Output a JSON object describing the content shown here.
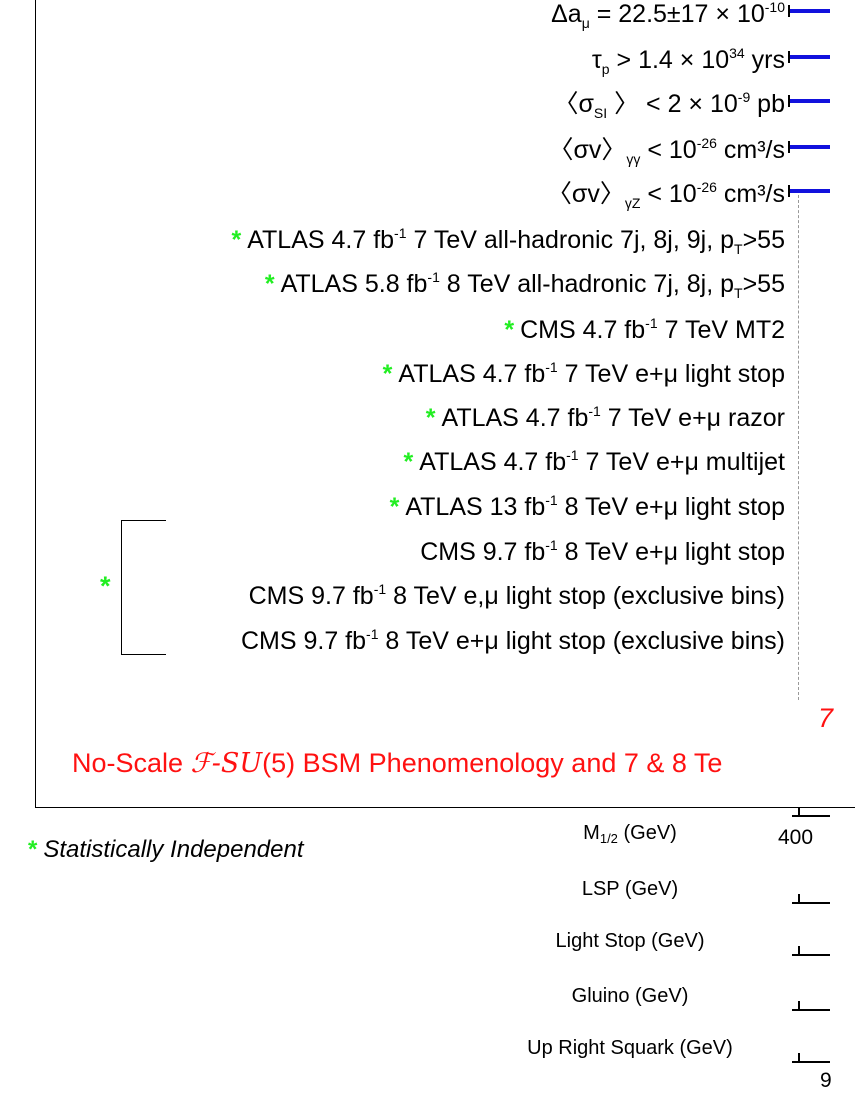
{
  "chart_data": {
    "type": "bar",
    "title": "No-Scale ℱ-SU(5) BSM Phenomenology and 7 & 8 Te",
    "title_parts": {
      "pre": "No-Scale ",
      "f": "ℱ",
      "su": "-SU",
      "post": "(5) BSM Phenomenology and 7 & 8 Te"
    },
    "subtitle": "7",
    "constraint_rows": [
      {
        "text_pre": "Δa",
        "sub": "μ",
        "text_post": " = 22.5±17 × 10",
        "sup": "-10"
      },
      {
        "text_pre": "τ",
        "sub": "p",
        "text_post": " > 1.4 × 10",
        "sup": "34",
        "tail": " yrs"
      },
      {
        "text_pre": "〈σ",
        "sub": "SI",
        "text_post": " 〉 <  2 × 10",
        "sup": "-9",
        "tail": " pb"
      },
      {
        "text_pre": "〈σv〉",
        "sub": "γγ",
        "text_post": " < 10",
        "sup": "-26",
        "tail": " cm³/s"
      },
      {
        "text_pre": "〈σv〉",
        "sub": "γZ",
        "text_post": " < 10",
        "sup": "-26",
        "tail": " cm³/s"
      }
    ],
    "search_rows": [
      {
        "star": true,
        "pre": "ATLAS 4.7 fb",
        "sup": "-1",
        "post": " 7 TeV  all-hadronic 7j, 8j, 9j, p",
        "sub": "T",
        "tail": ">55"
      },
      {
        "star": true,
        "pre": "ATLAS 5.8 fb",
        "sup": "-1",
        "post": " 8 TeV  all-hadronic 7j, 8j, p",
        "sub": "T",
        "tail": ">55"
      },
      {
        "star": true,
        "pre": "CMS 4.7 fb",
        "sup": "-1",
        "post": " 7 TeV MT2"
      },
      {
        "star": true,
        "pre": "ATLAS 4.7 fb",
        "sup": "-1",
        "post": " 7 TeV  e+μ light stop"
      },
      {
        "star": true,
        "pre": "ATLAS 4.7 fb",
        "sup": "-1",
        "post": " 7 TeV  e+μ razor"
      },
      {
        "star": true,
        "pre": "ATLAS 4.7 fb",
        "sup": "-1",
        "post": " 7 TeV  e+μ multijet"
      },
      {
        "star": true,
        "pre": "ATLAS 13 fb",
        "sup": "-1",
        "post": " 8 TeV e+μ light stop"
      },
      {
        "star": false,
        "pre": "CMS 9.7 fb",
        "sup": "-1",
        "post": " 8 TeV e+μ light stop"
      },
      {
        "star": false,
        "pre": "CMS 9.7 fb",
        "sup": "-1",
        "post": " 8 TeV e,μ light stop (exclusive bins)"
      },
      {
        "star": false,
        "pre": "CMS 9.7 fb",
        "sup": "-1",
        "post": " 8 TeV e+μ light stop (exclusive bins)"
      }
    ],
    "bracket_star": true,
    "legend_note": "Statistically Independent",
    "star_symbol": "*",
    "x_axes": [
      {
        "label_pre": "M",
        "label_sub": "1/2",
        "label_post": " (GeV)",
        "first_tick": "400"
      },
      {
        "label_pre": "LSP (GeV)"
      },
      {
        "label_pre": "Light Stop (GeV)"
      },
      {
        "label_pre": "Gluino (GeV)"
      },
      {
        "label_pre": "Up Right Squark (GeV)",
        "first_tick": "9"
      }
    ],
    "colors": {
      "bar": "#1111dd",
      "title": "#ff1111",
      "star": "#22ee22"
    }
  }
}
